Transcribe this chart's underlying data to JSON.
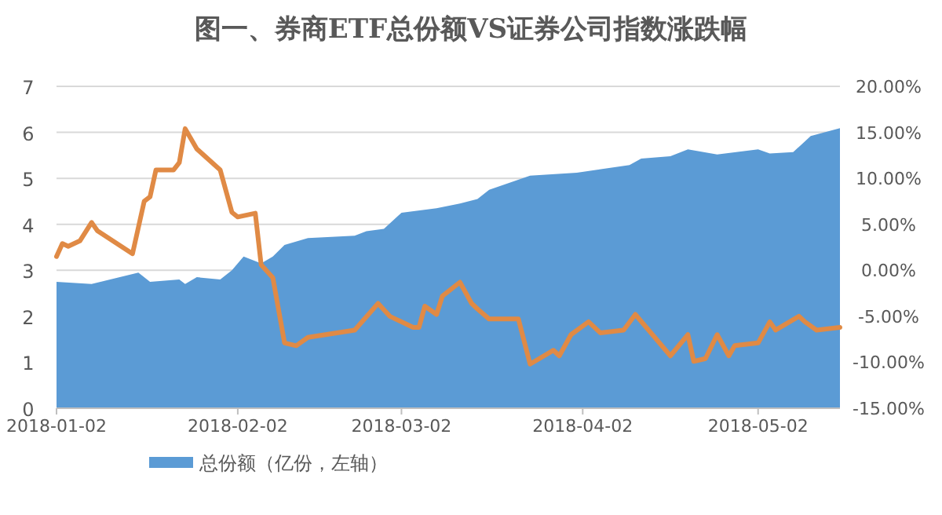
{
  "chart_data": {
    "type": "area",
    "title": "图一、券商ETF总份额VS证券公司指数涨跌幅",
    "xlim": [
      "2018-01-02",
      "2018-05-16"
    ],
    "xticks": [
      {
        "value": "2018-01-02",
        "label": "2018-01-02"
      },
      {
        "value": "2018-02-02",
        "label": "2018-02-02"
      },
      {
        "value": "2018-03-02",
        "label": "2018-03-02"
      },
      {
        "value": "2018-04-02",
        "label": "2018-04-02"
      },
      {
        "value": "2018-05-02",
        "label": "2018-05-02"
      }
    ],
    "ylim": [
      0,
      7
    ],
    "yticks": [
      0,
      1,
      2,
      3,
      4,
      5,
      6,
      7
    ],
    "y2lim": [
      -15,
      20
    ],
    "y2ticks": [
      {
        "value": -15,
        "label": "-15.00%"
      },
      {
        "value": -10,
        "label": "-10.00%"
      },
      {
        "value": -5,
        "label": "-5.00%"
      },
      {
        "value": 0,
        "label": "0.00%"
      },
      {
        "value": 5,
        "label": "5.00%"
      },
      {
        "value": 10,
        "label": "10.00%"
      },
      {
        "value": 15,
        "label": "15.00%"
      },
      {
        "value": 20,
        "label": "20.00%"
      }
    ],
    "grid": "y",
    "legend": "bottom",
    "series": [
      {
        "name": "总份额（亿份，左轴）",
        "type": "area",
        "color": "#5b9bd5",
        "x": [
          "2018-01-02",
          "2018-01-08",
          "2018-01-16",
          "2018-01-18",
          "2018-01-23",
          "2018-01-24",
          "2018-01-26",
          "2018-01-30",
          "2018-02-01",
          "2018-02-03",
          "2018-02-06",
          "2018-02-08",
          "2018-02-10",
          "2018-02-14",
          "2018-02-22",
          "2018-02-24",
          "2018-02-27",
          "2018-03-02",
          "2018-03-08",
          "2018-03-12",
          "2018-03-15",
          "2018-03-17",
          "2018-03-24",
          "2018-04-01",
          "2018-04-10",
          "2018-04-12",
          "2018-04-17",
          "2018-04-20",
          "2018-04-25",
          "2018-05-02",
          "2018-05-04",
          "2018-05-08",
          "2018-05-11",
          "2018-05-16"
        ],
        "values": [
          2.75,
          2.7,
          2.95,
          2.75,
          2.8,
          2.7,
          2.85,
          2.8,
          3.0,
          3.3,
          3.15,
          3.3,
          3.55,
          3.7,
          3.75,
          3.85,
          3.9,
          4.25,
          4.35,
          4.45,
          4.55,
          4.75,
          5.06,
          5.12,
          5.29,
          5.43,
          5.48,
          5.63,
          5.52,
          5.63,
          5.54,
          5.57,
          5.92,
          6.09
        ]
      },
      {
        "type": "line",
        "axis": "y2",
        "color": "#e08a45",
        "x": [
          "2018-01-02",
          "2018-01-03",
          "2018-01-04",
          "2018-01-06",
          "2018-01-08",
          "2018-01-09",
          "2018-01-15",
          "2018-01-17",
          "2018-01-18",
          "2018-01-19",
          "2018-01-22",
          "2018-01-23",
          "2018-01-24",
          "2018-01-26",
          "2018-01-30",
          "2018-02-01",
          "2018-02-02",
          "2018-02-05",
          "2018-02-06",
          "2018-02-08",
          "2018-02-10",
          "2018-02-12",
          "2018-02-14",
          "2018-02-22",
          "2018-02-26",
          "2018-02-28",
          "2018-03-04",
          "2018-03-05",
          "2018-03-06",
          "2018-03-08",
          "2018-03-09",
          "2018-03-12",
          "2018-03-14",
          "2018-03-15",
          "2018-03-17",
          "2018-03-22",
          "2018-03-24",
          "2018-03-28",
          "2018-03-29",
          "2018-03-31",
          "2018-04-03",
          "2018-04-05",
          "2018-04-09",
          "2018-04-11",
          "2018-04-17",
          "2018-04-20",
          "2018-04-21",
          "2018-04-23",
          "2018-04-25",
          "2018-04-27",
          "2018-04-28",
          "2018-05-02",
          "2018-05-04",
          "2018-05-05",
          "2018-05-09",
          "2018-05-10",
          "2018-05-12",
          "2018-05-16"
        ],
        "values": [
          1.5,
          2.9,
          2.6,
          3.2,
          5.2,
          4.3,
          1.8,
          7.5,
          8.0,
          10.9,
          10.9,
          11.7,
          15.4,
          13.2,
          10.9,
          6.3,
          5.8,
          6.2,
          0.6,
          -0.8,
          -7.9,
          -8.2,
          -7.3,
          -6.5,
          -3.6,
          -5.0,
          -6.2,
          -6.2,
          -3.9,
          -4.8,
          -2.8,
          -1.3,
          -3.6,
          -4.2,
          -5.3,
          -5.3,
          -10.2,
          -8.7,
          -9.3,
          -7.0,
          -5.6,
          -6.8,
          -6.5,
          -4.8,
          -9.3,
          -7.0,
          -9.9,
          -9.6,
          -7.0,
          -9.3,
          -8.2,
          -7.9,
          -5.6,
          -6.5,
          -5.0,
          -5.6,
          -6.5,
          -6.2
        ]
      }
    ]
  }
}
